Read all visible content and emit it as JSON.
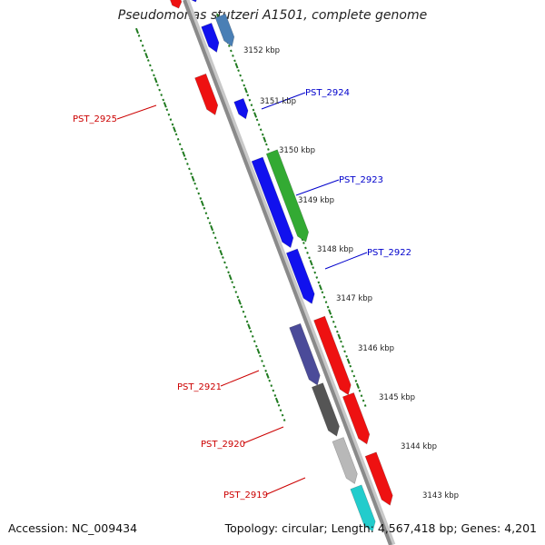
{
  "title": "Pseudomonas stutzeri A1501, complete genome",
  "footer": {
    "accession": "Accession: NC_009434",
    "summary": "Topology: circular; Length: 4,567,418 bp; Genes: 4,201"
  },
  "kbp_labels": [
    "3152 kbp",
    "3151 kbp",
    "3150 kbp",
    "3149 kbp",
    "3148 kbp",
    "3147 kbp",
    "3146 kbp",
    "3145 kbp",
    "3144 kbp",
    "3143 kbp"
  ],
  "gene_labels": [
    {
      "text": "PST_2925",
      "color": "#cc0000"
    },
    {
      "text": "PST_2924",
      "color": "#0000cc"
    },
    {
      "text": "PST_2923",
      "color": "#0000cc"
    },
    {
      "text": "PST_2922",
      "color": "#0000cc"
    },
    {
      "text": "PST_2921",
      "color": "#cc0000"
    },
    {
      "text": "PST_2920",
      "color": "#cc0000"
    },
    {
      "text": "PST_2919",
      "color": "#cc0000"
    }
  ],
  "colors": {
    "backbone": "#8a8a8a",
    "tick_green": "#1f7a1f",
    "forward_red": "#ee1111",
    "reverse_blue": "#1111ee",
    "steel_blue": "#4a7fb5",
    "green": "#33aa33",
    "slate": "#4b4b99",
    "dark_gray": "#555555",
    "light_gray": "#b8b8b8",
    "cyan": "#22cccc"
  }
}
